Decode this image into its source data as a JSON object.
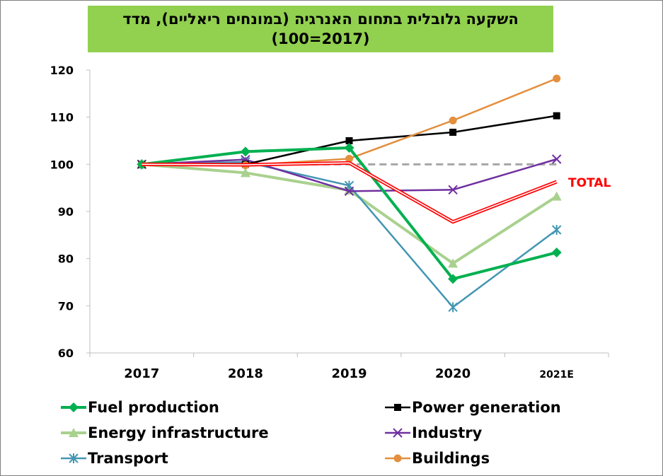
{
  "title": {
    "line1": "השקעה גלובלית בתחום האנרגיה (במונחים ריאליים), מדד",
    "line2": "(100=2017)"
  },
  "chart_data": {
    "type": "line",
    "categories": [
      "2017",
      "2018",
      "2019",
      "2020",
      "2021E"
    ],
    "ylim": [
      60,
      120
    ],
    "yticks": [
      60,
      70,
      80,
      90,
      100,
      110,
      120
    ],
    "grid": false,
    "legend_position": "bottom",
    "series": [
      {
        "name": "Fuel production",
        "values": [
          100,
          102.7,
          103.5,
          75.7,
          81.3
        ],
        "color": "#00b050",
        "marker": "diamond"
      },
      {
        "name": "Power generation",
        "values": [
          100,
          100,
          105,
          106.8,
          110.3
        ],
        "color": "#000000",
        "marker": "square"
      },
      {
        "name": "Energy infrastructure",
        "values": [
          100,
          98.2,
          94.5,
          79,
          93.2
        ],
        "color": "#a9d18e",
        "marker": "triangle"
      },
      {
        "name": "Industry",
        "values": [
          100,
          101,
          94.3,
          94.6,
          101.1
        ],
        "color": "#7030a0",
        "marker": "x"
      },
      {
        "name": "Transport",
        "values": [
          100,
          100.5,
          95.5,
          69.7,
          86.1
        ],
        "color": "#4396b2",
        "marker": "star"
      },
      {
        "name": "Buildings",
        "values": [
          100,
          99.8,
          101.2,
          109.3,
          118.2
        ],
        "color": "#e38f3e",
        "marker": "circle"
      },
      {
        "name": "TOTAL",
        "values": [
          100,
          99.9,
          100.3,
          87.8,
          96.3
        ],
        "color": "#ff0000",
        "marker": "none",
        "style": "double"
      }
    ],
    "reference_line": {
      "value": 100,
      "color": "#a6a6a6",
      "style": "dashed"
    }
  }
}
